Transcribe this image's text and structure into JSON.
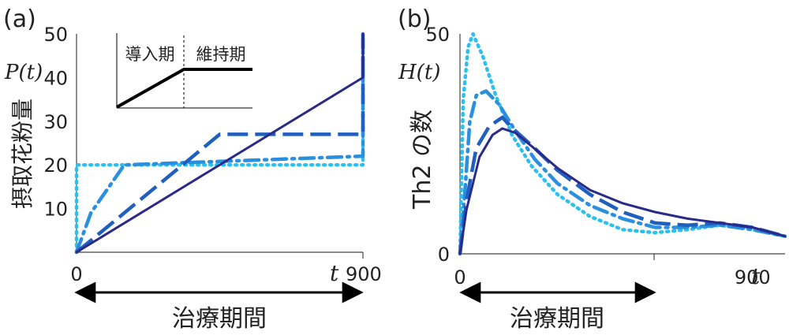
{
  "panel_a": {
    "label": "(a)",
    "ylabel_symbol": "P(t)",
    "ylabel": "摂取花粉量",
    "t_symbol": "t",
    "therapy_label": "治療期間",
    "inset": {
      "left_label": "導入期",
      "right_label": "維持期"
    }
  },
  "panel_b": {
    "label": "(b)",
    "ylabel_symbol": "H(t)",
    "ylabel": "Th2 の数",
    "t_symbol": "t",
    "therapy_label": "治療期間"
  },
  "colors": {
    "navy": "#2a2a8a",
    "blue": "#1f5fc0",
    "mid_blue": "#2b8fe0",
    "light_blue": "#2cc0ee"
  },
  "chart_data": [
    {
      "type": "line",
      "panel": "a",
      "xlim": [
        0,
        900
      ],
      "ylim": [
        0,
        50
      ],
      "x_ticks": [
        "0",
        "900"
      ],
      "y_ticks": [
        "10",
        "20",
        "30",
        "40",
        "50"
      ],
      "series": [
        {
          "style": "solid",
          "color": "navy",
          "x": [
            0,
            900,
            900,
            900
          ],
          "y": [
            0,
            40,
            40,
            50
          ]
        },
        {
          "style": "dashed",
          "color": "blue",
          "x": [
            0,
            450,
            900,
            900,
            900
          ],
          "y": [
            0,
            27,
            27,
            40,
            50
          ]
        },
        {
          "style": "dash-dot",
          "color": "mid_blue",
          "x": [
            0,
            45,
            150,
            900,
            900,
            900
          ],
          "y": [
            0,
            9,
            20,
            22,
            37,
            50
          ]
        },
        {
          "style": "dotted",
          "color": "light_blue",
          "x": [
            0,
            0,
            900,
            900,
            900
          ],
          "y": [
            0,
            20,
            20,
            36,
            50
          ]
        }
      ]
    },
    {
      "type": "line",
      "panel": "b",
      "xlim": [
        0,
        1000
      ],
      "ylim": [
        0,
        50
      ],
      "x_ticks": [
        "0",
        "900"
      ],
      "y_ticks": [
        "0",
        "50"
      ],
      "series": [
        {
          "style": "solid",
          "color": "navy",
          "x": [
            0,
            20,
            60,
            100,
            130,
            170,
            220,
            300,
            400,
            500,
            600,
            700,
            800,
            900,
            1000
          ],
          "y": [
            0,
            10,
            22,
            27,
            28.5,
            27.5,
            24.5,
            19.5,
            14.5,
            11.5,
            9.5,
            8,
            7,
            6,
            4
          ]
        },
        {
          "style": "dashed",
          "color": "blue",
          "x": [
            0,
            20,
            50,
            90,
            130,
            170,
            230,
            300,
            400,
            500,
            600,
            700,
            800,
            900,
            1000
          ],
          "y": [
            0,
            12,
            24,
            29,
            31,
            28,
            24,
            19,
            13.5,
            9.5,
            7,
            6.5,
            7,
            6,
            4
          ]
        },
        {
          "style": "dash-dot",
          "color": "mid_blue",
          "x": [
            0,
            15,
            30,
            50,
            80,
            120,
            170,
            230,
            300,
            400,
            500,
            600,
            700,
            800,
            900,
            1000
          ],
          "y": [
            0,
            14,
            30,
            36,
            37,
            34,
            28,
            21.5,
            16,
            11,
            8,
            6,
            6,
            6.5,
            5.5,
            4
          ]
        },
        {
          "style": "dotted",
          "color": "light_blue",
          "x": [
            0,
            10,
            25,
            40,
            70,
            110,
            160,
            220,
            300,
            400,
            500,
            600,
            700,
            800,
            900,
            1000
          ],
          "y": [
            0,
            35,
            47,
            50,
            45,
            36,
            27,
            20,
            13.5,
            8.5,
            5.5,
            4.8,
            5.5,
            6.5,
            5.5,
            4
          ]
        }
      ]
    }
  ]
}
